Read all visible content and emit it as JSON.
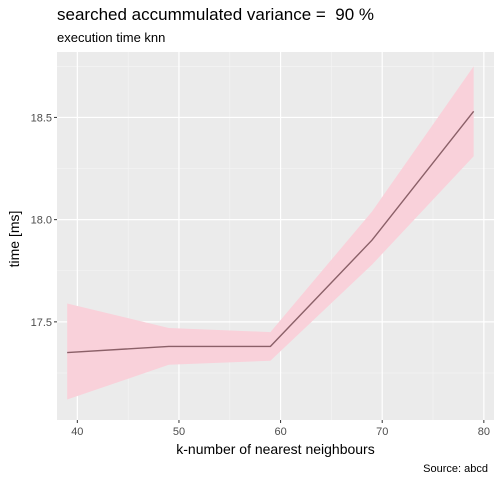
{
  "chart_data": {
    "type": "line",
    "title": "searched accummulated variance =  90 %",
    "subtitle": "execution time knn",
    "xlabel": "k-number of nearest neighbours",
    "ylabel": "time [ms]",
    "caption": "Source: abcd",
    "x": [
      39,
      49,
      59,
      69,
      79
    ],
    "series": [
      {
        "values": [
          17.35,
          17.38,
          17.38,
          17.9,
          18.53
        ],
        "lower": [
          17.12,
          17.29,
          17.31,
          17.78,
          18.31
        ],
        "upper": [
          17.59,
          17.47,
          17.45,
          18.04,
          18.75
        ]
      }
    ],
    "xlim": [
      38,
      81
    ],
    "ylim": [
      17.02,
      18.82
    ],
    "xticks": [
      40,
      50,
      60,
      70,
      80
    ],
    "yticks": [
      17.5,
      18.0,
      18.5
    ],
    "line_color": "#8b6068",
    "band_color": "#f9d1da",
    "panel_color": "#ebebeb",
    "grid": true
  }
}
